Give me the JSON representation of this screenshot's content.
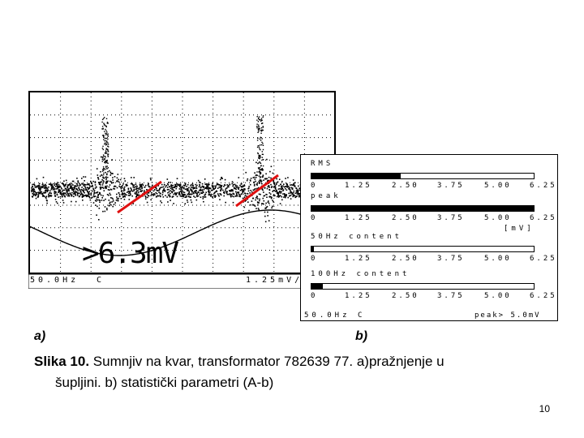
{
  "scope": {
    "footer_left": "50.0Hz",
    "footer_mode": "C",
    "footer_scale": "1.25mV/",
    "readout": ">6.3mV"
  },
  "stats": {
    "sections": [
      {
        "label": "RMS",
        "level": 0.4,
        "ticks": [
          "0",
          "1.25",
          "2.50",
          "3.75",
          "5.00",
          "6.25"
        ]
      },
      {
        "label": "peak",
        "level": 1.0,
        "ticks": [
          "0",
          "1.25",
          "2.50",
          "3.75",
          "5.00",
          "6.25"
        ],
        "unit": "[mV]"
      },
      {
        "label": "50Hz content",
        "level": 0.01,
        "ticks": [
          "0",
          "1.25",
          "2.50",
          "3.75",
          "5.00",
          "6.25"
        ]
      },
      {
        "label": "100Hz content",
        "level": 0.05,
        "ticks": [
          "0",
          "1.25",
          "2.50",
          "3.75",
          "5.00",
          "6.25"
        ]
      }
    ],
    "footer_left": "50.0Hz",
    "footer_mode": "C",
    "footer_right": "peak> 5.0mV"
  },
  "caption": {
    "label_a": "a)",
    "label_b": "b)",
    "bold_prefix": "Slika 10.",
    "line1": " Sumnjiv na kvar, transformator 782639  77. a)pražnjenje u",
    "line2": "šupljini. b) statistički parametri (A-b)"
  },
  "page_number": "10",
  "colors": {
    "arrow": "#e01010",
    "ink": "#000000"
  }
}
